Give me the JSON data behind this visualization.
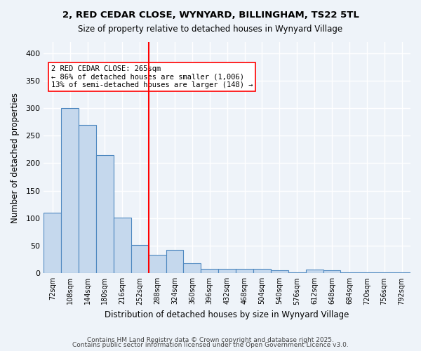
{
  "title1": "2, RED CEDAR CLOSE, WYNYARD, BILLINGHAM, TS22 5TL",
  "title2": "Size of property relative to detached houses in Wynyard Village",
  "xlabel": "Distribution of detached houses by size in Wynyard Village",
  "ylabel": "Number of detached properties",
  "categories": [
    "72sqm",
    "108sqm",
    "144sqm",
    "180sqm",
    "216sqm",
    "252sqm",
    "288sqm",
    "324sqm",
    "360sqm",
    "396sqm",
    "432sqm",
    "468sqm",
    "504sqm",
    "540sqm",
    "576sqm",
    "612sqm",
    "648sqm",
    "684sqm",
    "720sqm",
    "756sqm",
    "792sqm"
  ],
  "values": [
    110,
    300,
    270,
    215,
    101,
    52,
    33,
    42,
    18,
    8,
    8,
    8,
    8,
    5,
    2,
    7,
    6,
    2,
    2,
    2,
    2
  ],
  "bar_color": "#c5d8ed",
  "bar_edge_color": "#4e88c0",
  "background_color": "#eef3f9",
  "grid_color": "#ffffff",
  "red_line_x": 5.5,
  "annotation_text": "2 RED CEDAR CLOSE: 265sqm\n← 86% of detached houses are smaller (1,006)\n13% of semi-detached houses are larger (148) →",
  "footer1": "Contains HM Land Registry data © Crown copyright and database right 2025.",
  "footer2": "Contains public sector information licensed under the Open Government Licence v3.0.",
  "ylim": [
    0,
    420
  ],
  "yticks": [
    0,
    50,
    100,
    150,
    200,
    250,
    300,
    350,
    400
  ]
}
